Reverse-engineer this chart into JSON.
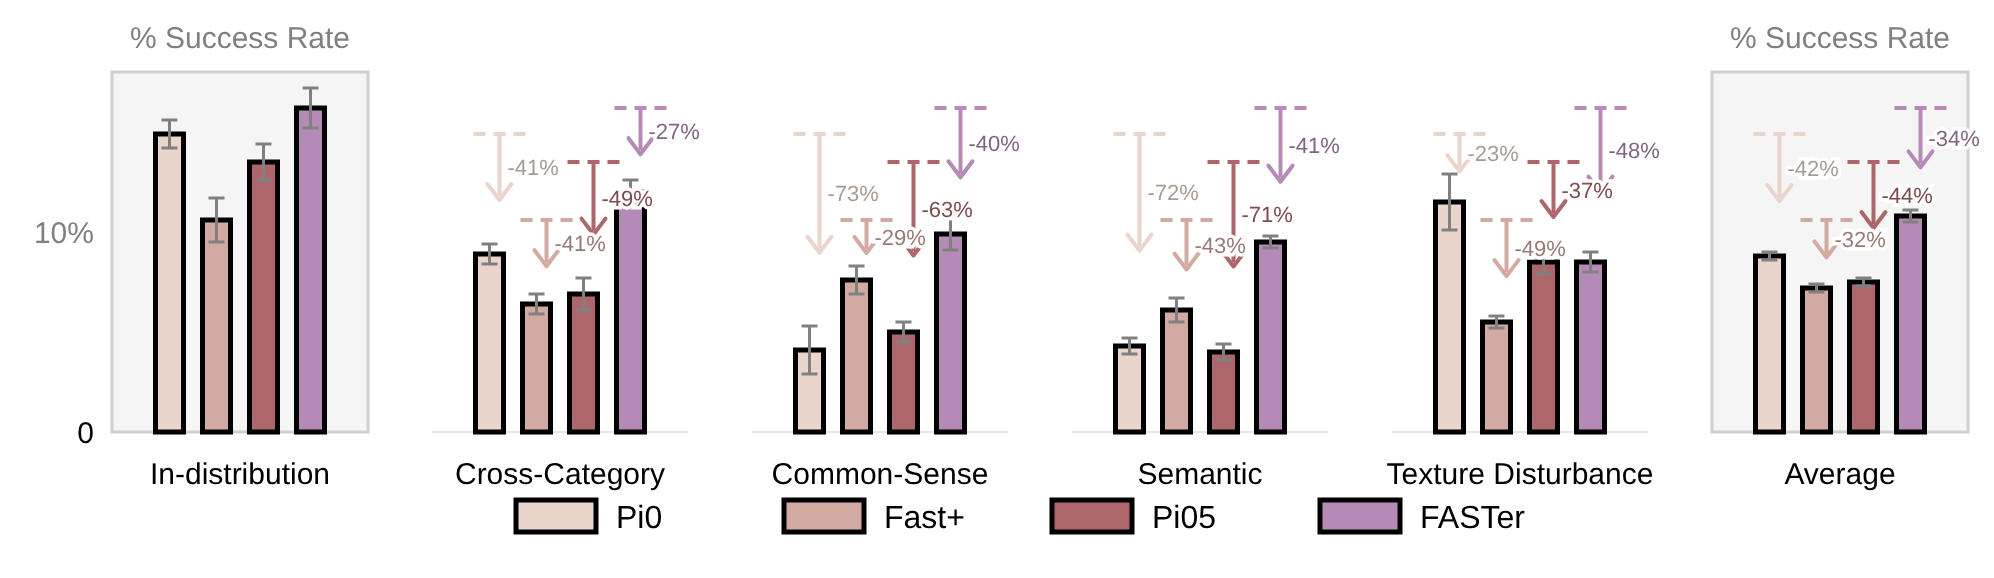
{
  "chart_data": {
    "type": "bar",
    "ylabel": "% Success Rate",
    "y2label": "% Success Rate",
    "categories": [
      "In-distribution",
      "Cross-Category",
      "Common-Sense",
      "Semantic",
      "Texture Disturbance",
      "Average"
    ],
    "bands": [
      {
        "axis": "x",
        "from": "In-distribution",
        "to": "In-distribution",
        "color": "#f5f5f5"
      },
      {
        "axis": "x",
        "from": "Average",
        "to": "Average",
        "color": "#f5f5f5"
      }
    ],
    "ylim": [
      0,
      18
    ],
    "yticks": [
      0,
      {
        "value": 10,
        "label": "10%"
      }
    ],
    "grid": false,
    "legend": "bottom",
    "series": [
      {
        "name": "Pi0",
        "color": "#e9d5cb",
        "values": [
          14.9,
          8.9,
          4.1,
          4.3,
          11.5,
          8.8
        ],
        "errors": [
          0.7,
          0.5,
          1.2,
          0.4,
          1.4,
          0.2
        ]
      },
      {
        "name": "Fast+",
        "color": "#d3aaa2",
        "values": [
          10.6,
          6.4,
          7.6,
          6.1,
          5.5,
          7.2
        ],
        "errors": [
          1.1,
          0.5,
          0.7,
          0.6,
          0.3,
          0.2
        ]
      },
      {
        "name": "Pi05",
        "color": "#ad676a",
        "values": [
          13.5,
          6.9,
          5.0,
          4.0,
          8.5,
          7.5
        ],
        "errors": [
          0.9,
          0.8,
          0.5,
          0.4,
          0.6,
          0.2
        ]
      },
      {
        "name": "FASTer",
        "color": "#b68ab6",
        "values": [
          16.2,
          12.0,
          9.9,
          9.5,
          8.5,
          10.8
        ],
        "errors": [
          1.0,
          0.6,
          0.8,
          0.3,
          0.5,
          0.3
        ]
      }
    ],
    "annotations": [
      "-41%",
      "-41%",
      "-49%",
      "-27%",
      "-73%",
      "-29%",
      "-63%",
      "-40%",
      "-72%",
      "-43%",
      "-71%",
      "-41%",
      "-23%",
      "-49%",
      "-37%",
      "-48%",
      "-42%",
      "-32%",
      "-44%",
      "-34%"
    ]
  }
}
